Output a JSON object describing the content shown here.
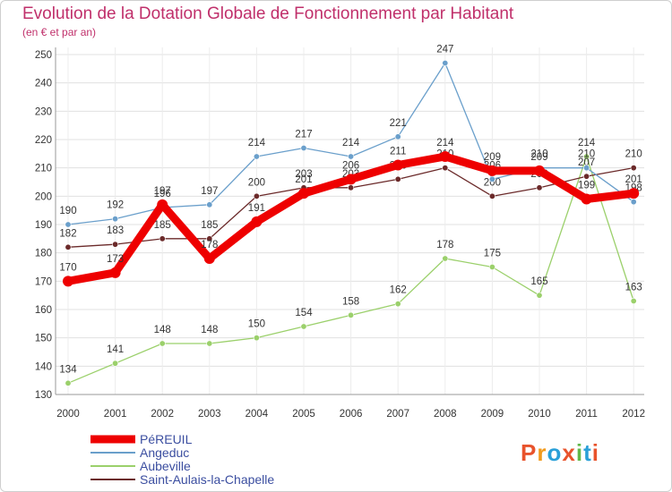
{
  "title": "Evolution de la Dotation Globale de Fonctionnement par Habitant",
  "subtitle": "(en € et par an)",
  "logo": {
    "text": "Proxiti",
    "colors": [
      "#e8532c",
      "#f29b1d",
      "#2aa0d8",
      "#e8532c",
      "#62b84a",
      "#2aa0d8",
      "#e8532c"
    ]
  },
  "chart_data": {
    "type": "line",
    "x": [
      "2000",
      "2001",
      "2002",
      "2003",
      "2004",
      "2005",
      "2006",
      "2007",
      "2008",
      "2009",
      "2010",
      "2011",
      "2012"
    ],
    "ylim": [
      130,
      250
    ],
    "yticks": [
      130,
      140,
      150,
      160,
      170,
      180,
      190,
      200,
      210,
      220,
      230,
      240,
      250
    ],
    "grid": true,
    "legend_position": "bottom-left",
    "series": [
      {
        "name": "PéREUIL",
        "color": "#ee0000",
        "width": 9,
        "values": [
          170,
          173,
          197,
          178,
          191,
          201,
          206,
          211,
          214,
          209,
          209,
          199,
          201
        ],
        "labels": [
          "170",
          "173",
          "197",
          "178",
          "191",
          "201",
          "206",
          "211",
          "214",
          "209",
          "209",
          "199",
          "201"
        ]
      },
      {
        "name": "Angeduc",
        "color": "#6a9fcb",
        "width": 1.3,
        "values": [
          190,
          192,
          196,
          197,
          214,
          217,
          214,
          221,
          247,
          206,
          210,
          210,
          198
        ],
        "labels": [
          "190",
          "192",
          "196",
          "197",
          "214",
          "217",
          "214",
          "221",
          "247",
          "206",
          "210",
          "210",
          "198"
        ]
      },
      {
        "name": "Aubeville",
        "color": "#9bd06b",
        "width": 1.3,
        "values": [
          134,
          141,
          148,
          148,
          150,
          154,
          158,
          162,
          178,
          175,
          165,
          214,
          163
        ],
        "labels": [
          "134",
          "141",
          "148",
          "148",
          "150",
          "154",
          "158",
          "162",
          "178",
          "175",
          "165",
          "214",
          "163"
        ]
      },
      {
        "name": "Saint-Aulais-la-Chapelle",
        "color": "#6b2a2a",
        "width": 1.3,
        "values": [
          182,
          183,
          185,
          185,
          200,
          203,
          203,
          206,
          210,
          200,
          203,
          207,
          210
        ],
        "labels": [
          "182",
          "183",
          "185",
          "185",
          "200",
          "203",
          "203",
          "206",
          "210",
          "200",
          "203",
          "207",
          "210"
        ]
      }
    ]
  }
}
